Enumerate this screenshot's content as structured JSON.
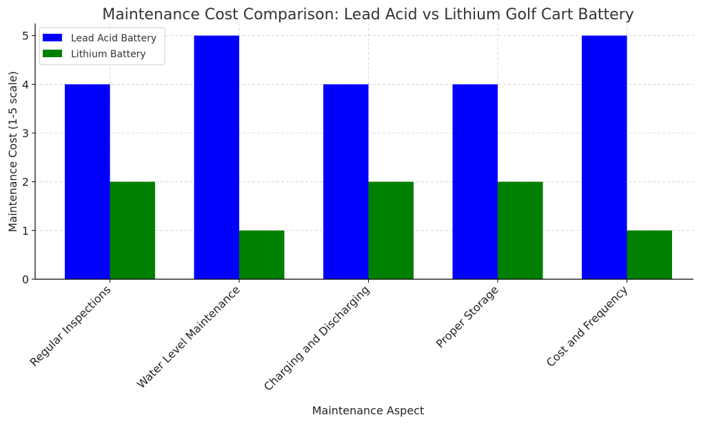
{
  "chart_data": {
    "type": "bar",
    "title": "Maintenance Cost Comparison: Lead Acid vs Lithium Golf Cart Battery",
    "xlabel": "Maintenance Aspect",
    "ylabel": "Maintenance Cost (1-5 scale)",
    "categories": [
      "Regular Inspections",
      "Water Level Maintenance",
      "Charging and Discharging",
      "Proper Storage",
      "Cost and Frequency"
    ],
    "series": [
      {
        "name": "Lead Acid Battery",
        "color": "#0000ff",
        "values": [
          4,
          5,
          4,
          4,
          5
        ]
      },
      {
        "name": "Lithium Battery",
        "color": "#008000",
        "values": [
          2,
          1,
          2,
          2,
          1
        ]
      }
    ],
    "ylim": [
      0,
      5.25
    ],
    "yticks": [
      "0",
      "1",
      "2",
      "3",
      "4",
      "5"
    ],
    "grid": true,
    "legend_position": "top-left"
  }
}
